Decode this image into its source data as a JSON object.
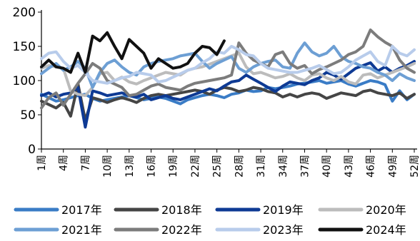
{
  "chart_data": {
    "type": "line",
    "title": "",
    "xlabel": "",
    "ylabel": "",
    "ylim": [
      0,
      200
    ],
    "yticks": [
      0,
      50,
      100,
      150,
      200
    ],
    "xlim": [
      1,
      52
    ],
    "xticks": [
      "1周",
      "4周",
      "7周",
      "10周",
      "13周",
      "16周",
      "19周",
      "22周",
      "25周",
      "28周",
      "31周",
      "34周",
      "37周",
      "40周",
      "43周",
      "46周",
      "49周",
      "52周"
    ],
    "grid": false,
    "legend_position": "bottom",
    "series": [
      {
        "name": "2017年",
        "color": "#3A7CC6",
        "values": [
          80,
          75,
          70,
          72,
          75,
          78,
          80,
          74,
          70,
          72,
          74,
          76,
          78,
          75,
          72,
          74,
          76,
          74,
          70,
          66,
          72,
          75,
          78,
          80,
          78,
          75,
          80,
          82,
          86,
          84,
          85,
          90,
          88,
          90,
          92,
          95,
          96,
          98,
          100,
          96,
          98,
          100,
          95,
          92,
          96,
          100,
          98,
          94,
          70,
          85,
          72,
          80
        ]
      },
      {
        "name": "2018年",
        "color": "#454545",
        "values": [
          70,
          65,
          60,
          68,
          48,
          95,
          42,
          75,
          72,
          68,
          72,
          75,
          72,
          68,
          74,
          78,
          80,
          78,
          80,
          82,
          84,
          86,
          84,
          80,
          86,
          90,
          88,
          84,
          86,
          90,
          88,
          84,
          82,
          76,
          80,
          76,
          80,
          82,
          80,
          74,
          78,
          82,
          80,
          78,
          84,
          86,
          82,
          80,
          78,
          82,
          74,
          80
        ]
      },
      {
        "name": "2019年",
        "color": "#0E3A94",
        "values": [
          78,
          82,
          76,
          80,
          82,
          90,
          32,
          85,
          82,
          78,
          80,
          82,
          78,
          76,
          80,
          72,
          75,
          78,
          74,
          72,
          76,
          80,
          84,
          88,
          85,
          92,
          98,
          100,
          108,
          102,
          96,
          90,
          84,
          92,
          98,
          96,
          94,
          100,
          104,
          112,
          108,
          102,
          110,
          118,
          122,
          126,
          114,
          120,
          112,
          118,
          122,
          128
        ]
      },
      {
        "name": "2020年",
        "color": "#BCBCBC",
        "values": [
          118,
          122,
          120,
          118,
          85,
          80,
          78,
          90,
          110,
          112,
          100,
          105,
          98,
          95,
          100,
          104,
          108,
          112,
          110,
          108,
          115,
          118,
          120,
          124,
          128,
          132,
          136,
          140,
          120,
          110,
          112,
          108,
          104,
          106,
          110,
          104,
          100,
          108,
          110,
          104,
          100,
          106,
          98,
          95,
          108,
          110,
          104,
          108,
          112,
          116,
          120,
          125
        ]
      },
      {
        "name": "2021年",
        "color": "#6D9FD4",
        "values": [
          110,
          118,
          125,
          115,
          120,
          128,
          118,
          90,
          112,
          125,
          130,
          120,
          112,
          108,
          120,
          125,
          128,
          130,
          132,
          136,
          138,
          140,
          128,
          118,
          125,
          130,
          135,
          118,
          112,
          120,
          125,
          128,
          130,
          120,
          118,
          140,
          155,
          142,
          136,
          140,
          150,
          135,
          128,
          125,
          120,
          118,
          112,
          108,
          100,
          110,
          104,
          100
        ]
      },
      {
        "name": "2022年",
        "color": "#7C7C7C",
        "values": [
          60,
          75,
          82,
          64,
          80,
          96,
          110,
          125,
          118,
          100,
          95,
          90,
          78,
          80,
          86,
          92,
          95,
          90,
          88,
          86,
          92,
          96,
          98,
          100,
          102,
          104,
          108,
          155,
          140,
          130,
          125,
          120,
          138,
          142,
          125,
          118,
          122,
          110,
          116,
          120,
          125,
          130,
          138,
          142,
          150,
          174,
          164,
          156,
          150,
          130,
          118,
          112
        ]
      },
      {
        "name": "2023年",
        "color": "#B8CCEB",
        "values": [
          132,
          140,
          142,
          128,
          118,
          122,
          112,
          100,
          98,
          96,
          100,
          104,
          106,
          112,
          110,
          108,
          98,
          100,
          105,
          110,
          115,
          118,
          126,
          132,
          142,
          140,
          150,
          145,
          138,
          136,
          125,
          118,
          116,
          114,
          112,
          112,
          115,
          118,
          122,
          116,
          110,
          112,
          120,
          130,
          136,
          142,
          128,
          122,
          150,
          140,
          136,
          145
        ]
      },
      {
        "name": "2024年",
        "color": "#111111",
        "values": [
          120,
          130,
          120,
          118,
          112,
          140,
          112,
          165,
          158,
          170,
          150,
          132,
          160,
          150,
          140,
          118,
          132,
          125,
          118,
          120,
          125,
          140,
          150,
          148,
          138,
          158
        ]
      }
    ]
  }
}
